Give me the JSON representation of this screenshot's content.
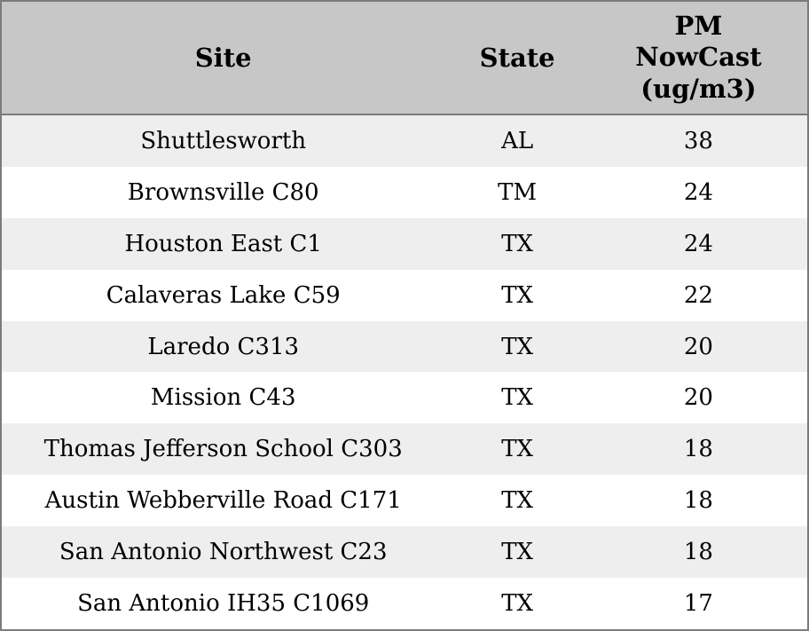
{
  "header": {
    "site": "Site",
    "state": "State",
    "pm": "PM\nNowCast\n(ug/m3)"
  },
  "chart_data": {
    "type": "table",
    "columns": [
      "Site",
      "State",
      "PM NowCast (ug/m3)"
    ],
    "rows": [
      [
        "Shuttlesworth",
        "AL",
        "38"
      ],
      [
        "Brownsville C80",
        "TM",
        "24"
      ],
      [
        "Houston East C1",
        "TX",
        "24"
      ],
      [
        "Calaveras Lake C59",
        "TX",
        "22"
      ],
      [
        "Laredo C313",
        "TX",
        "20"
      ],
      [
        "Mission C43",
        "TX",
        "20"
      ],
      [
        "Thomas Jefferson School C303",
        "TX",
        "18"
      ],
      [
        "Austin Webberville Road C171",
        "TX",
        "18"
      ],
      [
        "San Antonio Northwest C23",
        "TX",
        "18"
      ],
      [
        "San Antonio IH35 C1069",
        "TX",
        "17"
      ]
    ]
  },
  "colors": {
    "header_bg": "#c7c7c7",
    "row_odd_bg": "#eeeeee",
    "row_even_bg": "#ffffff",
    "border": "#7b7b7b",
    "text": "#000000"
  }
}
